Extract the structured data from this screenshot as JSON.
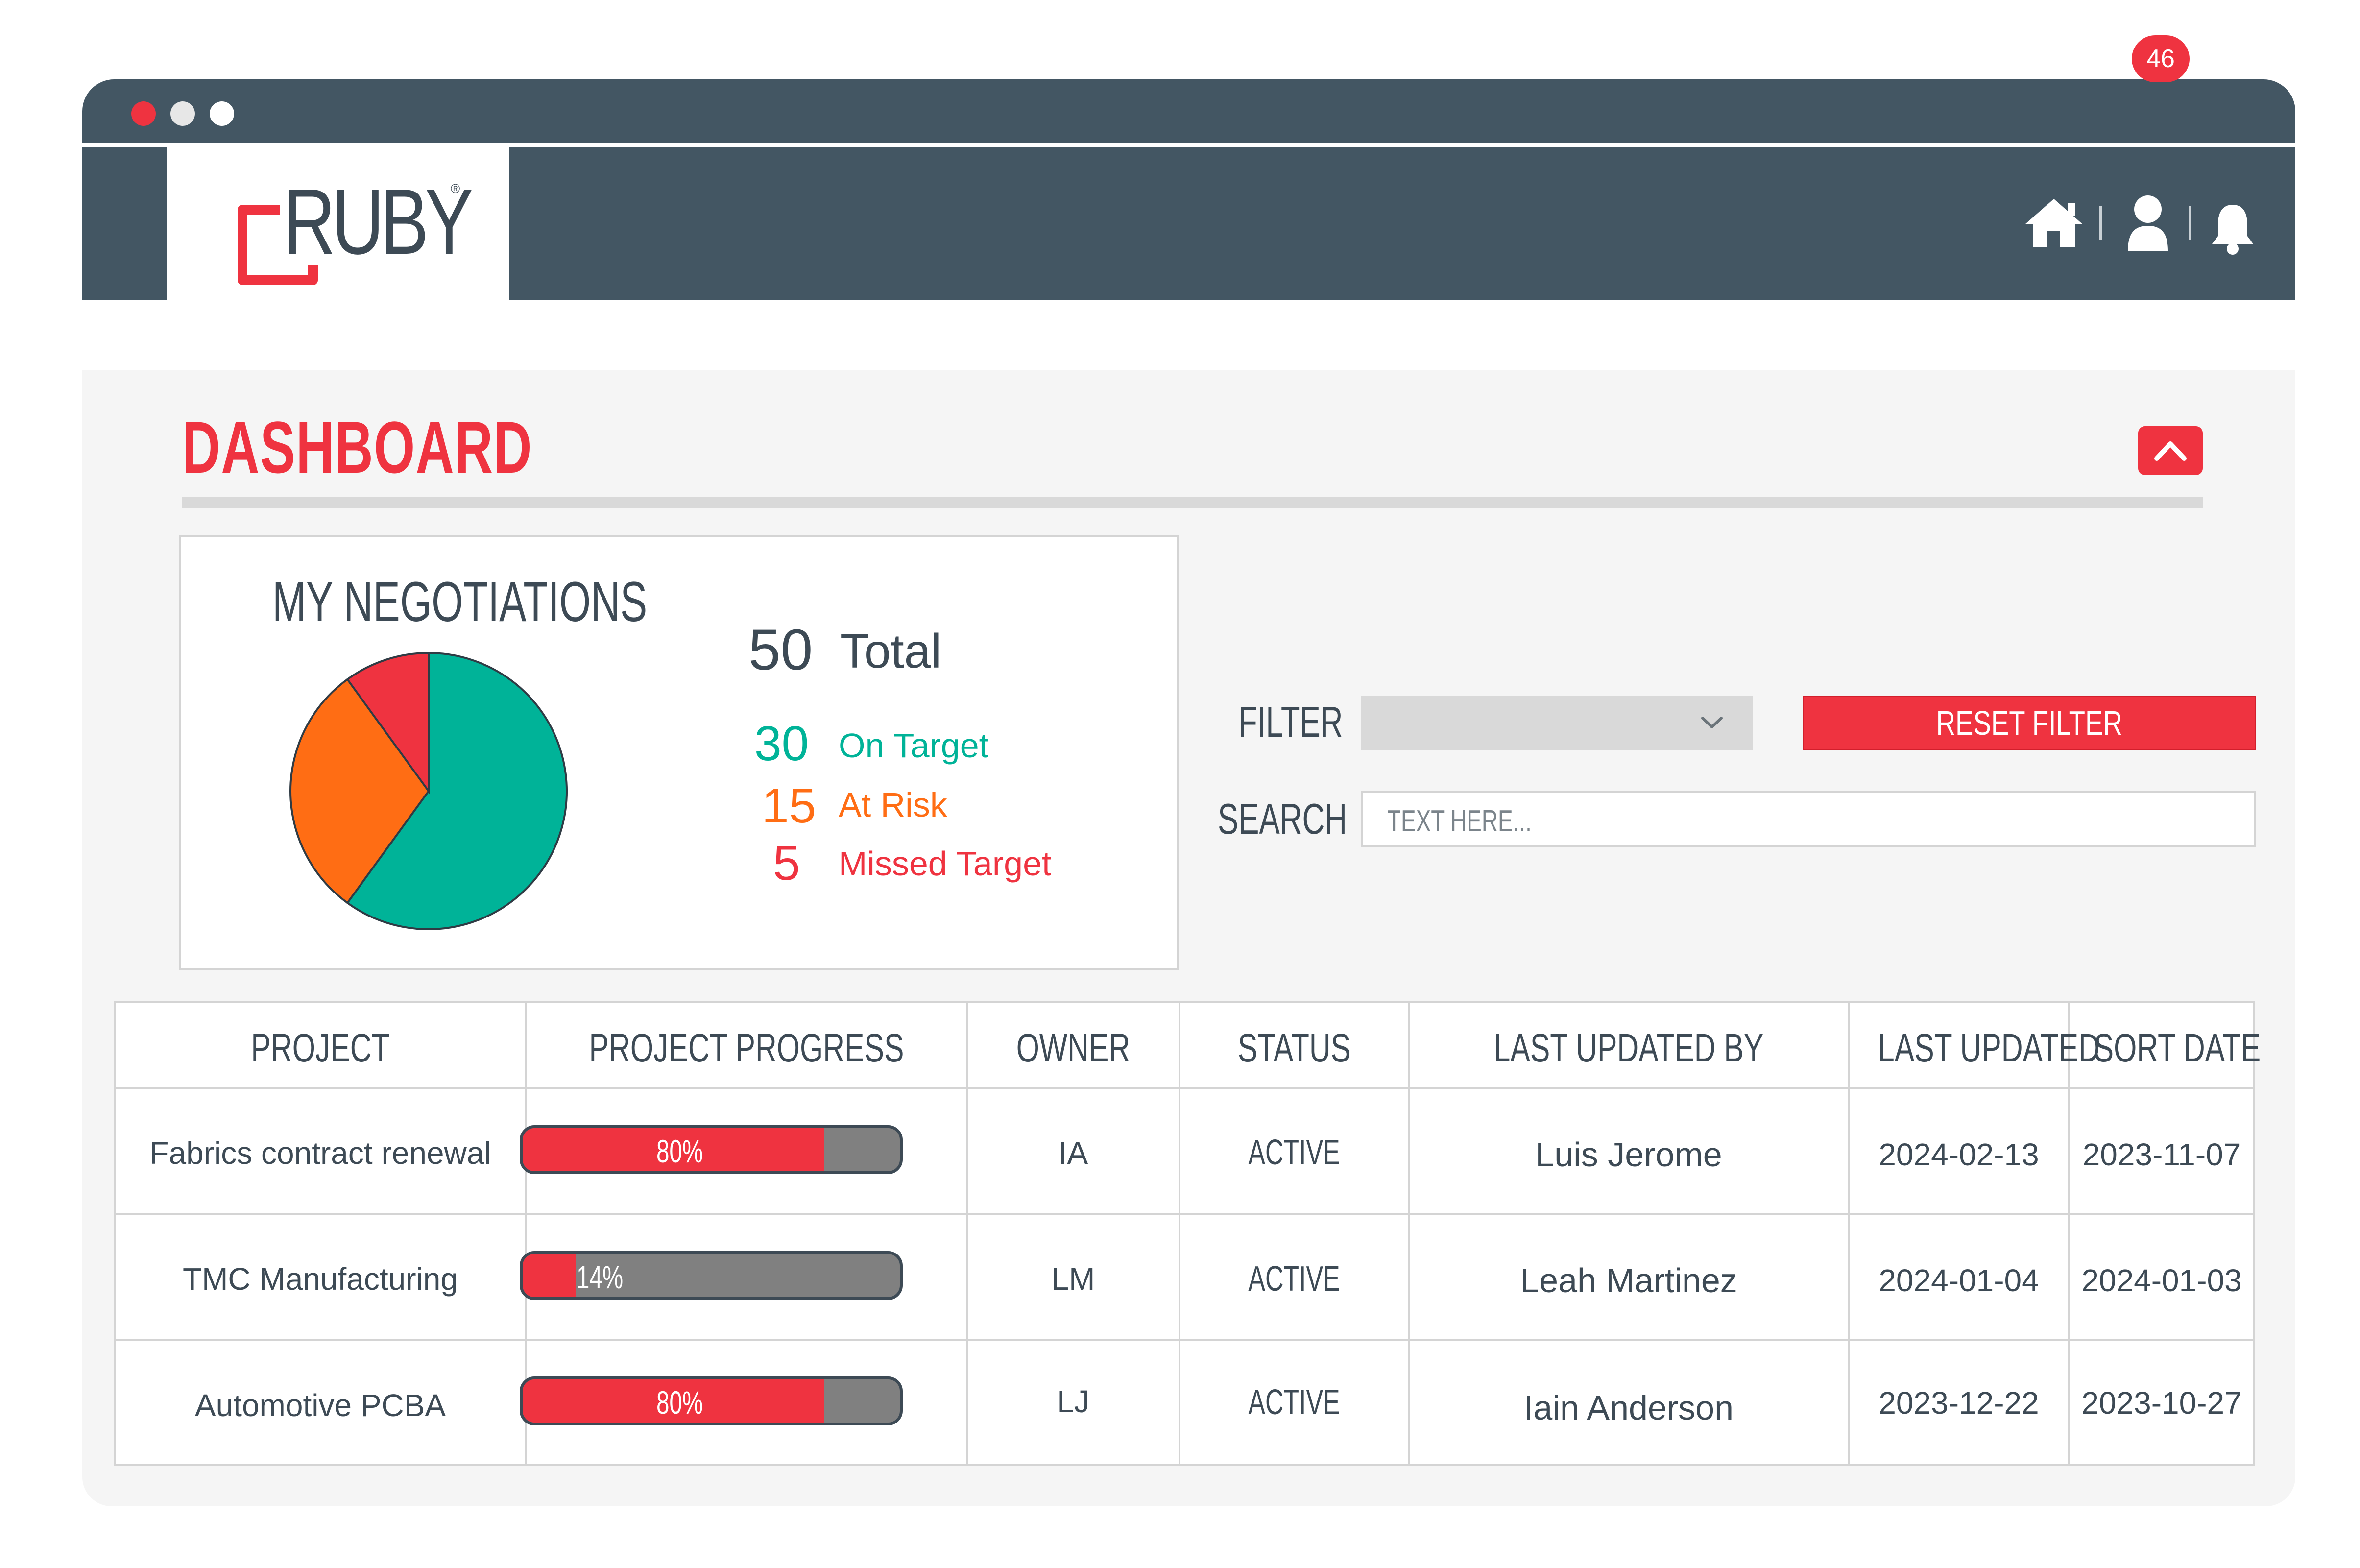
{
  "app": {
    "logo_text": "RUBY",
    "logo_reg": "®"
  },
  "colors": {
    "brand_red": "#ef3340",
    "header_slate": "#435663",
    "on_target": "#00b398",
    "at_risk": "#ff6d14",
    "missed_target": "#ef3340",
    "progress_track": "#808080"
  },
  "header": {
    "icons": [
      "home-icon",
      "user-icon",
      "bell-icon"
    ],
    "notification_count": "46"
  },
  "dashboard": {
    "title": "DASHBOARD",
    "collapse_icon": "chevron-up-icon"
  },
  "negotiations": {
    "title": "MY NEGOTIATIONS",
    "total": "50",
    "total_label": "Total",
    "on_target": "30",
    "on_target_label": "On Target",
    "at_risk": "15",
    "at_risk_label": "At Risk",
    "missed": "5",
    "missed_label": "Missed Target"
  },
  "chart_data": {
    "type": "pie",
    "title": "MY NEGOTIATIONS",
    "slices": [
      {
        "label": "On Target",
        "value": 30,
        "color": "#00b398"
      },
      {
        "label": "At Risk",
        "value": 15,
        "color": "#ff6d14"
      },
      {
        "label": "Missed Target",
        "value": 5,
        "color": "#ef3340"
      }
    ]
  },
  "filters": {
    "filter_label": "FILTER",
    "filter_value": "",
    "reset_label": "RESET FILTER",
    "search_label": "SEARCH",
    "search_placeholder": "TEXT HERE..."
  },
  "table": {
    "headers": [
      "PROJECT",
      "PROJECT PROGRESS",
      "OWNER",
      "STATUS",
      "LAST UPDATED BY",
      "LAST UPDATED",
      "SORT DATE"
    ],
    "rows": [
      {
        "project": "Fabrics contract renewal",
        "progress": 80,
        "progress_label": "80%",
        "owner": "IA",
        "status": "ACTIVE",
        "updated_by": "Luis Jerome",
        "last_updated": "2024-02-13",
        "sort_date": "2023-11-07"
      },
      {
        "project": "TMC Manufacturing",
        "progress": 14,
        "progress_label": "14%",
        "owner": "LM",
        "status": "ACTIVE",
        "updated_by": "Leah Martinez",
        "last_updated": "2024-01-04",
        "sort_date": "2024-01-03"
      },
      {
        "project": "Automotive PCBA",
        "progress": 80,
        "progress_label": "80%",
        "owner": "LJ",
        "status": "ACTIVE",
        "updated_by": "Iain Anderson",
        "last_updated": "2023-12-22",
        "sort_date": "2023-10-27"
      }
    ]
  }
}
